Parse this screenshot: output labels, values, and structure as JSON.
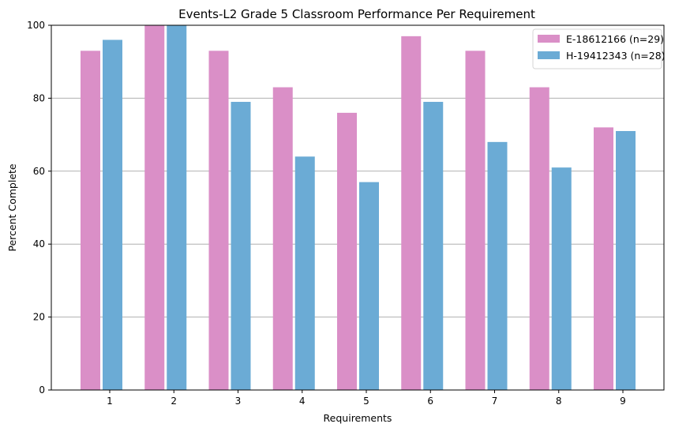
{
  "chart_data": {
    "type": "bar",
    "title": "Events-L2 Grade 5 Classroom Performance Per Requirement",
    "xlabel": "Requirements",
    "ylabel": "Percent Complete",
    "categories": [
      "1",
      "2",
      "3",
      "4",
      "5",
      "6",
      "7",
      "8",
      "9"
    ],
    "series": [
      {
        "name": "E-18612166 (n=29)",
        "color": "#da8fc7",
        "values": [
          93,
          100,
          93,
          83,
          76,
          97,
          93,
          83,
          72
        ]
      },
      {
        "name": "H-19412343 (n=28)",
        "color": "#6babd5",
        "values": [
          96,
          100,
          79,
          64,
          57,
          79,
          68,
          61,
          71
        ]
      }
    ],
    "ylim": [
      0,
      100
    ],
    "yticks": [
      0,
      20,
      40,
      60,
      80,
      100
    ],
    "grid": "horizontal",
    "legend_position": "top-right"
  }
}
